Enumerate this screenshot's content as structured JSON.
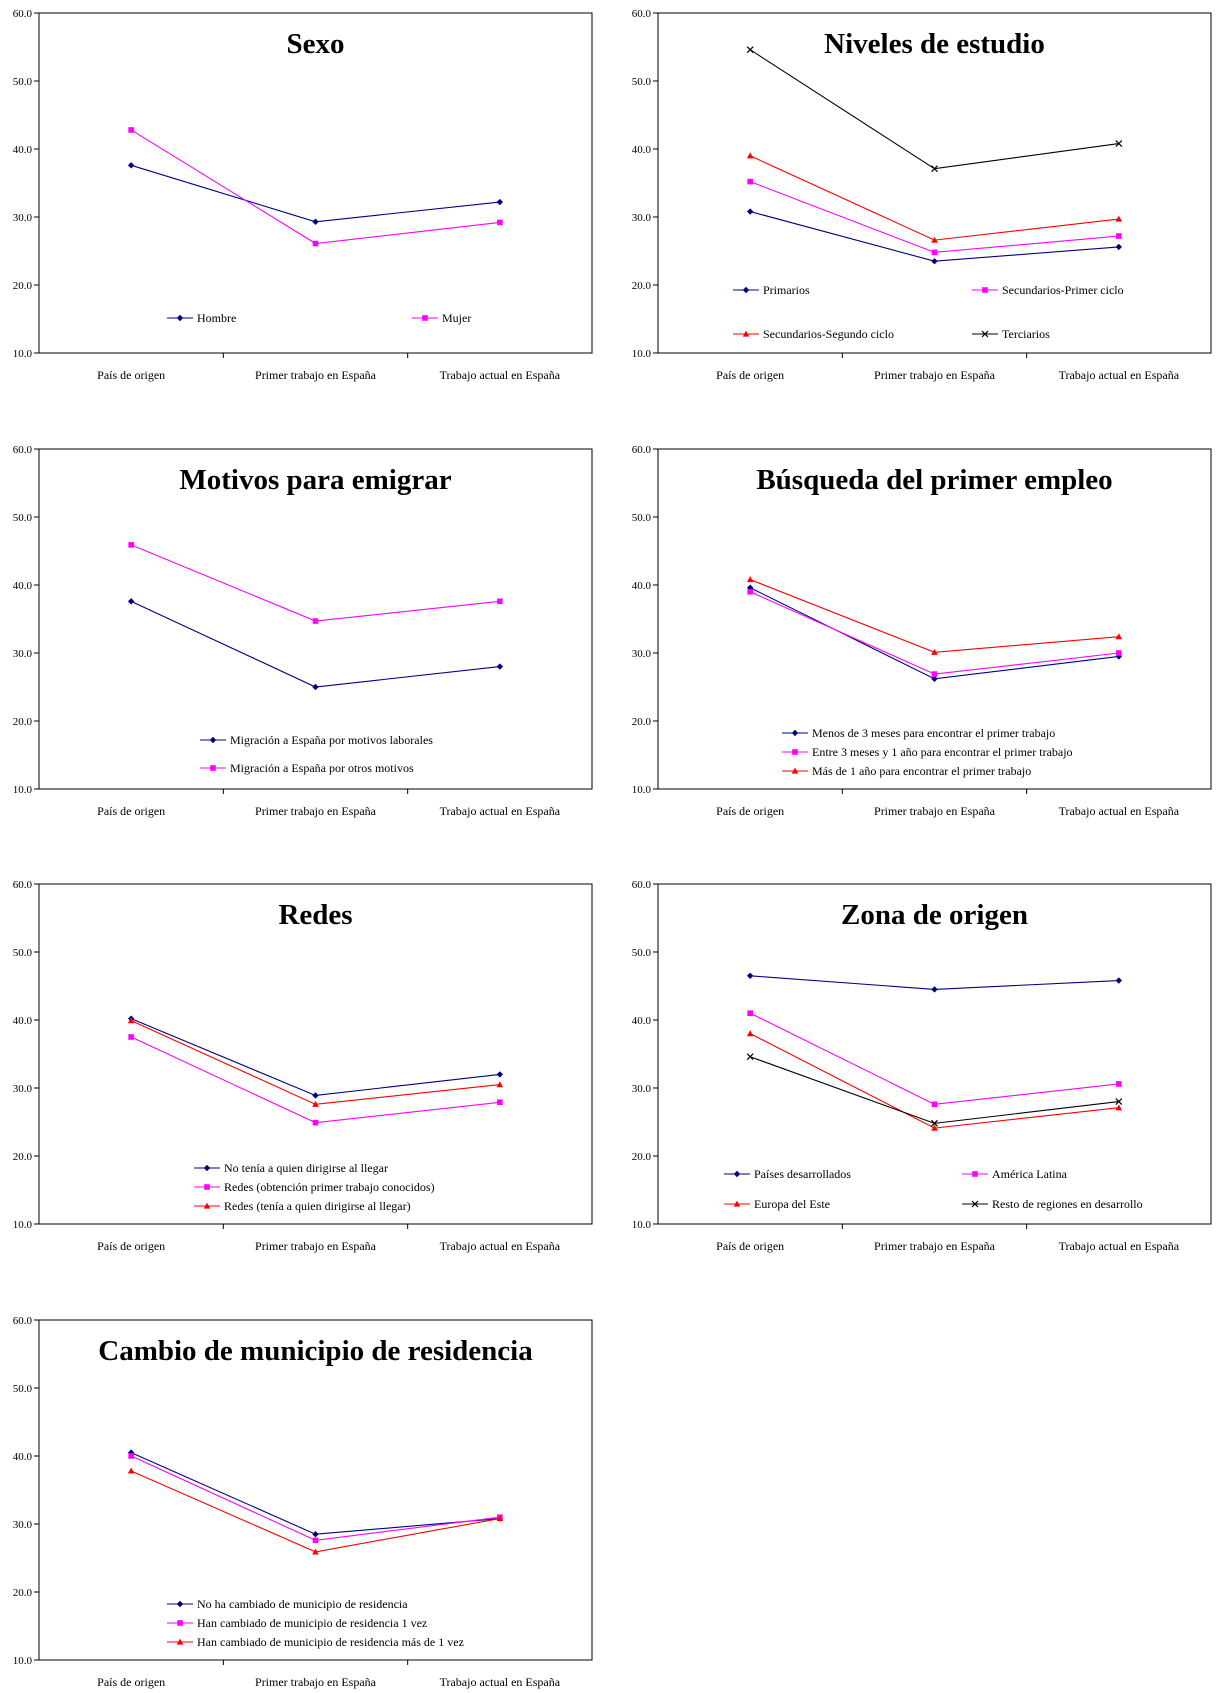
{
  "page": {
    "background": "#ffffff"
  },
  "chart_data": [
    {
      "type": "line",
      "title": "Sexo",
      "categories": [
        "País de origen",
        "Primer trabajo en España",
        "Trabajo actual en España"
      ],
      "ylim": [
        10,
        60
      ],
      "yticks": [
        "10.0",
        "20.0",
        "30.0",
        "40.0",
        "50.0",
        "60.0"
      ],
      "legend_layout": "row",
      "series": [
        {
          "name": "Hombre",
          "values": [
            37.6,
            29.3,
            32.2
          ],
          "color": "#000080",
          "marker": "diamond"
        },
        {
          "name": "Mujer",
          "values": [
            42.8,
            26.1,
            29.2
          ],
          "color": "#ff00ff",
          "marker": "square"
        }
      ]
    },
    {
      "type": "line",
      "title": "Niveles de estudio",
      "categories": [
        "País de origen",
        "Primer trabajo en España",
        "Trabajo actual en España"
      ],
      "ylim": [
        10,
        60
      ],
      "yticks": [
        "10.0",
        "20.0",
        "30.0",
        "40.0",
        "50.0",
        "60.0"
      ],
      "legend_layout": "grid",
      "series": [
        {
          "name": "Primarios",
          "values": [
            30.8,
            23.5,
            25.6
          ],
          "color": "#000080",
          "marker": "diamond"
        },
        {
          "name": "Secundarios-Primer ciclo",
          "values": [
            35.2,
            24.8,
            27.2
          ],
          "color": "#ff00ff",
          "marker": "square"
        },
        {
          "name": "Secundarios-Segundo ciclo",
          "values": [
            39.0,
            26.6,
            29.7
          ],
          "color": "#ff0000",
          "marker": "triangle"
        },
        {
          "name": "Terciarios",
          "values": [
            54.6,
            37.1,
            40.8
          ],
          "color": "#000000",
          "marker": "x"
        }
      ]
    },
    {
      "type": "line",
      "title": "Motivos para emigrar",
      "categories": [
        "País de origen",
        "Primer trabajo en España",
        "Trabajo actual en España"
      ],
      "ylim": [
        10,
        60
      ],
      "yticks": [
        "10.0",
        "20.0",
        "30.0",
        "40.0",
        "50.0",
        "60.0"
      ],
      "legend_layout": "column",
      "series": [
        {
          "name": "Migración a España por motivos laborales",
          "values": [
            37.6,
            25.0,
            28.0
          ],
          "color": "#000080",
          "marker": "diamond"
        },
        {
          "name": "Migración a España por otros motivos",
          "values": [
            45.9,
            34.7,
            37.6
          ],
          "color": "#ff00ff",
          "marker": "square"
        }
      ]
    },
    {
      "type": "line",
      "title": "Búsqueda del primer empleo",
      "categories": [
        "País de origen",
        "Primer trabajo en España",
        "Trabajo actual en España"
      ],
      "ylim": [
        10,
        60
      ],
      "yticks": [
        "10.0",
        "20.0",
        "30.0",
        "40.0",
        "50.0",
        "60.0"
      ],
      "legend_layout": "column",
      "series": [
        {
          "name": "Menos de 3 meses para encontrar el primer trabajo",
          "values": [
            39.6,
            26.2,
            29.5
          ],
          "color": "#000080",
          "marker": "diamond"
        },
        {
          "name": "Entre 3 meses y 1 año para encontrar el primer trabajo",
          "values": [
            39.0,
            26.9,
            30.0
          ],
          "color": "#ff00ff",
          "marker": "square"
        },
        {
          "name": "Más de 1 año para encontrar el primer trabajo",
          "values": [
            40.8,
            30.1,
            32.4
          ],
          "color": "#ff0000",
          "marker": "triangle"
        }
      ]
    },
    {
      "type": "line",
      "title": "Redes",
      "categories": [
        "País de origen",
        "Primer trabajo en España",
        "Trabajo actual en España"
      ],
      "ylim": [
        10,
        60
      ],
      "yticks": [
        "10.0",
        "20.0",
        "30.0",
        "40.0",
        "50.0",
        "60.0"
      ],
      "legend_layout": "column",
      "series": [
        {
          "name": "No tenía a quien dirigirse al llegar",
          "values": [
            40.2,
            28.9,
            32.0
          ],
          "color": "#000080",
          "marker": "diamond"
        },
        {
          "name": "Redes (obtención primer trabajo conocidos)",
          "values": [
            37.5,
            24.9,
            27.9
          ],
          "color": "#ff00ff",
          "marker": "square"
        },
        {
          "name": "Redes (tenía a quien dirigirse al llegar)",
          "values": [
            39.9,
            27.6,
            30.5
          ],
          "color": "#ff0000",
          "marker": "triangle"
        }
      ]
    },
    {
      "type": "line",
      "title": "Zona de origen",
      "categories": [
        "País de origen",
        "Primer trabajo en España",
        "Trabajo actual en España"
      ],
      "ylim": [
        10,
        60
      ],
      "yticks": [
        "10.0",
        "20.0",
        "30.0",
        "40.0",
        "50.0",
        "60.0"
      ],
      "legend_layout": "grid",
      "series": [
        {
          "name": "Países desarrollados",
          "values": [
            46.5,
            44.5,
            45.8
          ],
          "color": "#000080",
          "marker": "diamond"
        },
        {
          "name": "América Latina",
          "values": [
            41.0,
            27.6,
            30.6
          ],
          "color": "#ff00ff",
          "marker": "square"
        },
        {
          "name": "Europa del Este",
          "values": [
            38.0,
            24.1,
            27.1
          ],
          "color": "#ff0000",
          "marker": "triangle"
        },
        {
          "name": "Resto de regiones en desarrollo",
          "values": [
            34.6,
            24.8,
            28.0
          ],
          "color": "#000000",
          "marker": "x"
        }
      ]
    },
    {
      "type": "line",
      "title": "Cambio de municipio de residencia",
      "categories": [
        "País de origen",
        "Primer trabajo en España",
        "Trabajo actual en España"
      ],
      "ylim": [
        10,
        60
      ],
      "yticks": [
        "10.0",
        "20.0",
        "30.0",
        "40.0",
        "50.0",
        "60.0"
      ],
      "legend_layout": "column",
      "series": [
        {
          "name": "No ha cambiado de municipio de residencia",
          "values": [
            40.5,
            28.5,
            30.8
          ],
          "color": "#000080",
          "marker": "diamond"
        },
        {
          "name": "Han cambiado de municipio de residencia 1 vez",
          "values": [
            40.0,
            27.6,
            31.0
          ],
          "color": "#ff00ff",
          "marker": "square"
        },
        {
          "name": "Han cambiado de municipio de residencia más de 1 vez",
          "values": [
            37.8,
            25.9,
            30.8
          ],
          "color": "#ff0000",
          "marker": "triangle"
        }
      ]
    }
  ]
}
